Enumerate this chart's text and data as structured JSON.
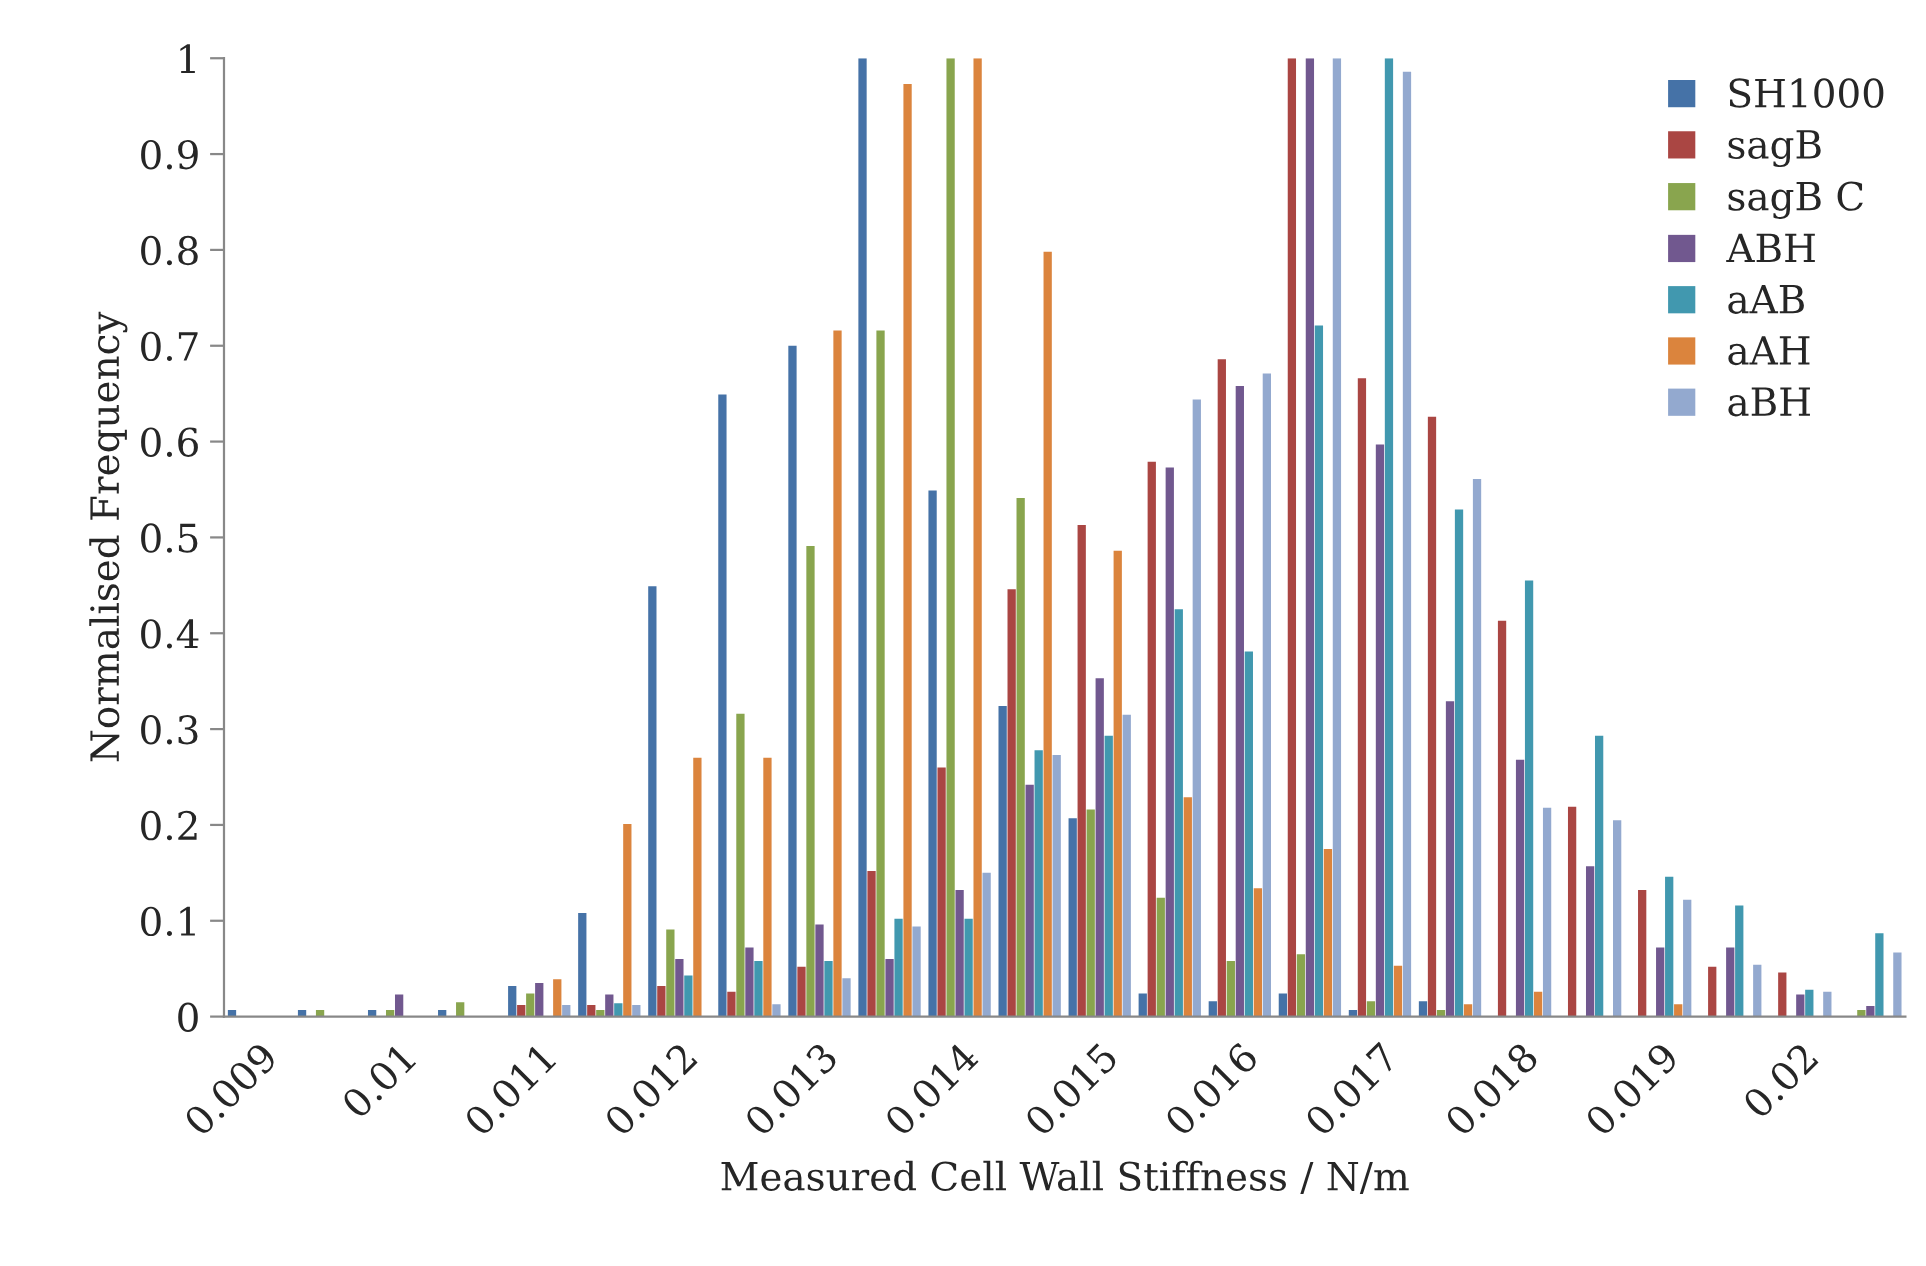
{
  "chart_data": {
    "type": "bar",
    "xlabel": "Measured Cell Wall Stiffness / N/m",
    "ylabel": "Normalised Frequency",
    "categories": [
      "0.009",
      null,
      "0.01",
      null,
      "0.011",
      null,
      "0.012",
      null,
      "0.013",
      null,
      "0.014",
      null,
      "0.015",
      null,
      "0.016",
      null,
      "0.017",
      null,
      "0.018",
      null,
      "0.019",
      null,
      "0.02",
      null
    ],
    "series": [
      {
        "name": "SH1000",
        "color": "#4572a7",
        "values": [
          0.007,
          0.007,
          0.007,
          0.007,
          0.032,
          0.108,
          0.449,
          0.649,
          0.7,
          1.0,
          0.549,
          0.324,
          0.207,
          0.024,
          0.016,
          0.024,
          0.007,
          0.016,
          0,
          0,
          0,
          0,
          0,
          0
        ]
      },
      {
        "name": "sagB",
        "color": "#aa4643",
        "values": [
          0,
          0,
          0,
          0,
          0.012,
          0.012,
          0.032,
          0.026,
          0.052,
          0.152,
          0.26,
          0.446,
          0.513,
          0.579,
          0.686,
          1.0,
          0.666,
          0.626,
          0.413,
          0.219,
          0.132,
          0.052,
          0.046,
          0
        ]
      },
      {
        "name": "sagB C",
        "color": "#89a54e",
        "values": [
          0,
          0.007,
          0.007,
          0.015,
          0.024,
          0.007,
          0.091,
          0.316,
          0.491,
          0.716,
          1.0,
          0.541,
          0.216,
          0.124,
          0.058,
          0.065,
          0.016,
          0.007,
          0,
          0,
          0,
          0,
          0,
          0.007
        ]
      },
      {
        "name": "ABH",
        "color": "#71588f",
        "values": [
          0,
          0,
          0.023,
          0,
          0.035,
          0.023,
          0.06,
          0.072,
          0.096,
          0.06,
          0.132,
          0.242,
          0.353,
          0.573,
          0.658,
          1.0,
          0.597,
          0.329,
          0.268,
          0.157,
          0.072,
          0.072,
          0.023,
          0.011
        ]
      },
      {
        "name": "aAB",
        "color": "#4198af",
        "values": [
          0,
          0,
          0,
          0,
          0,
          0.014,
          0.043,
          0.058,
          0.058,
          0.102,
          0.102,
          0.278,
          0.293,
          0.425,
          0.381,
          0.721,
          1.0,
          0.529,
          0.455,
          0.293,
          0.146,
          0.116,
          0.028,
          0.087
        ]
      },
      {
        "name": "aAH",
        "color": "#db843d",
        "values": [
          0,
          0,
          0,
          0,
          0.039,
          0.201,
          0.27,
          0.27,
          0.716,
          0.973,
          1.0,
          0.798,
          0.486,
          0.229,
          0.134,
          0.175,
          0.053,
          0.013,
          0.026,
          0,
          0.013,
          0,
          0,
          0
        ]
      },
      {
        "name": "aBH",
        "color": "#93a9cf",
        "values": [
          0,
          0,
          0,
          0,
          0.012,
          0.012,
          0,
          0.013,
          0.04,
          0.094,
          0.15,
          0.273,
          0.315,
          0.644,
          0.671,
          1.0,
          0.986,
          0.561,
          0.218,
          0.205,
          0.122,
          0.054,
          0.026,
          0.067
        ]
      }
    ],
    "ylim": [
      0,
      1
    ],
    "yticks": [
      0,
      0.1,
      0.2,
      0.3,
      0.4,
      0.5,
      0.6,
      0.7,
      0.8,
      0.9,
      1
    ],
    "grid": false,
    "legend": "top right"
  }
}
